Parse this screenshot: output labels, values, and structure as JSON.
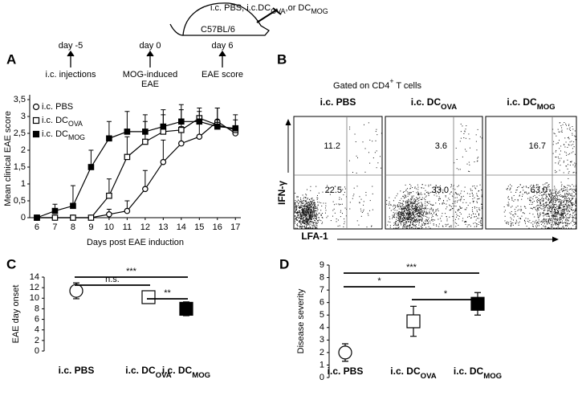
{
  "schematic": {
    "injection": [
      "i.c. PBS, i.c.DC",
      "OVA",
      ",or DC",
      "MOG"
    ],
    "strain": "C57BL/6",
    "timeline": [
      {
        "day": "day -5",
        "event": [
          "i.c. injections"
        ]
      },
      {
        "day": "day 0",
        "event": [
          "MOG-induced",
          "EAE"
        ]
      },
      {
        "day": "day 6",
        "event": [
          "EAE score"
        ]
      }
    ]
  },
  "chart_data": [
    {
      "panel": "A",
      "type": "line",
      "x": [
        6,
        7,
        8,
        9,
        10,
        11,
        12,
        13,
        14,
        15,
        16,
        17
      ],
      "xlim": [
        5.6,
        17.3
      ],
      "xticks": [
        6,
        7,
        8,
        9,
        10,
        11,
        12,
        13,
        14,
        15,
        16,
        17
      ],
      "ylim": [
        0,
        3.5
      ],
      "yticks": [
        0,
        {
          "value": 0.5,
          "label": "0,5"
        },
        1,
        {
          "value": 1.5,
          "label": "1,5"
        },
        2,
        {
          "value": 2.5,
          "label": "2,5"
        },
        3,
        {
          "value": 3.5,
          "label": "3,5"
        }
      ],
      "xlabel": "Days post EAE induction",
      "ylabel": "Mean clinical EAE score",
      "legend": "upper left",
      "series": [
        {
          "name": "i.c. PBS",
          "marker": "open-circle",
          "color": "#000000",
          "values": [
            0,
            0,
            0,
            0,
            0.1,
            0.2,
            0.85,
            1.65,
            2.2,
            2.4,
            2.85,
            2.5
          ],
          "errors": [
            null,
            null,
            null,
            null,
            0.15,
            0.3,
            0.55,
            0.65,
            0.5,
            0.5,
            0.4,
            0.1
          ]
        },
        {
          "name": "i.c. DC",
          "sub": "OVA",
          "marker": "open-square",
          "color": "#000000",
          "values": [
            0,
            0,
            0,
            0,
            0.65,
            1.8,
            2.25,
            2.55,
            2.6,
            2.95,
            2.75,
            2.6
          ],
          "errors": [
            null,
            null,
            null,
            null,
            0.5,
            0.6,
            0.6,
            0.5,
            0.6,
            0.3,
            0.5,
            0.3
          ]
        },
        {
          "name": "i.c. DC",
          "sub": "MOG",
          "marker": "filled-square",
          "color": "#000000",
          "values": [
            0,
            0.2,
            0.35,
            1.5,
            2.35,
            2.55,
            2.55,
            2.7,
            2.85,
            2.85,
            2.7,
            2.65
          ],
          "errors": [
            null,
            0.2,
            0.6,
            0.5,
            0.5,
            0.6,
            0.5,
            0.5,
            0.5,
            0.3,
            0.2,
            0.4
          ]
        }
      ]
    },
    {
      "panel": "C",
      "type": "dot",
      "categories": [
        {
          "label": "i.c. PBS"
        },
        {
          "label": "i.c. DC",
          "sub": "OVA"
        },
        {
          "label": "i.c. DC",
          "sub": "MOG"
        }
      ],
      "markers": [
        "open-circle",
        "open-square",
        "filled-square"
      ],
      "values": [
        11.4,
        10.2,
        8.0
      ],
      "errors": [
        1.5,
        1.0,
        1.3
      ],
      "ylim": [
        0,
        14
      ],
      "yticks": [
        0,
        2,
        4,
        6,
        8,
        10,
        12,
        14
      ],
      "ylabel": "EAE day onset",
      "annotations": [
        "***",
        "n.s.",
        "**"
      ]
    },
    {
      "panel": "D",
      "type": "dot",
      "categories": [
        {
          "label": "i.c. PBS"
        },
        {
          "label": "i.c. DC",
          "sub": "OVA"
        },
        {
          "label": "i.c. DC",
          "sub": "MOG"
        }
      ],
      "markers": [
        "open-circle",
        "open-square",
        "filled-square"
      ],
      "values": [
        2.0,
        4.5,
        5.9
      ],
      "errors": [
        0.7,
        1.2,
        0.9
      ],
      "ylim": [
        0,
        9
      ],
      "yticks": [
        0,
        1,
        2,
        3,
        4,
        5,
        6,
        7,
        8,
        9
      ],
      "ylabel": "Disease severity",
      "annotations": [
        "***",
        "*",
        "*"
      ]
    }
  ],
  "flow": {
    "panel": "B",
    "title": [
      "Gated on CD4",
      "+",
      " T cells"
    ],
    "ylabel": "IFN-γ",
    "xlabel": "LFA-1",
    "plots": [
      {
        "label": "i.c. PBS",
        "upper_right": "11.2",
        "lower_right": "22.5"
      },
      {
        "label": "i.c. DC",
        "sub": "OVA",
        "upper_right": "3.6",
        "lower_right": "33.0"
      },
      {
        "label": "i.c. DC",
        "sub": "MOG",
        "upper_right": "16.7",
        "lower_right": "63.0"
      }
    ]
  }
}
